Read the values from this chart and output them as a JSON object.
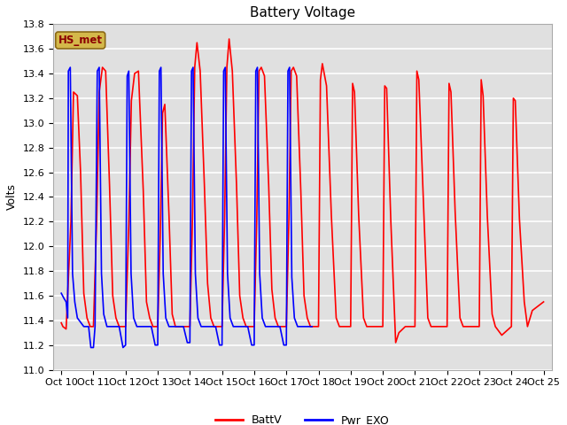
{
  "title": "Battery Voltage",
  "ylabel": "Volts",
  "ylim": [
    11.0,
    13.8
  ],
  "yticks": [
    11.0,
    11.2,
    11.4,
    11.6,
    11.8,
    12.0,
    12.2,
    12.4,
    12.6,
    12.8,
    13.0,
    13.2,
    13.4,
    13.6,
    13.8
  ],
  "xtick_labels": [
    "Oct 10",
    "Oct 11",
    "Oct 12",
    "Oct 13",
    "Oct 14",
    "Oct 15",
    "Oct 16",
    "Oct 17",
    "Oct 18",
    "Oct 19",
    "Oct 20",
    "Oct 21",
    "Oct 22",
    "Oct 23",
    "Oct 24",
    "Oct 25"
  ],
  "xtick_positions": [
    0,
    1,
    2,
    3,
    4,
    5,
    6,
    7,
    8,
    9,
    10,
    11,
    12,
    13,
    14,
    15
  ],
  "xlim": [
    -0.25,
    15.25
  ],
  "legend_labels": [
    "BattV",
    "Pwr_EXO"
  ],
  "legend_colors": [
    "red",
    "blue"
  ],
  "station_label": "HS_met",
  "plot_bg": "#e0e0e0",
  "fig_bg": "white",
  "grid_color": "white",
  "title_fontsize": 11,
  "axis_fontsize": 9,
  "tick_fontsize": 8,
  "line_width": 1.2,
  "battv_color": "red",
  "pwr_color": "blue",
  "battv": [
    [
      0.0,
      11.38
    ],
    [
      0.05,
      11.35
    ],
    [
      0.15,
      11.33
    ],
    [
      0.3,
      12.2
    ],
    [
      0.38,
      13.25
    ],
    [
      0.5,
      13.22
    ],
    [
      0.6,
      12.6
    ],
    [
      0.7,
      11.62
    ],
    [
      0.8,
      11.42
    ],
    [
      0.9,
      11.35
    ],
    [
      0.95,
      11.35
    ],
    [
      1.0,
      11.35
    ],
    [
      1.1,
      12.2
    ],
    [
      1.18,
      13.25
    ],
    [
      1.28,
      13.45
    ],
    [
      1.38,
      13.42
    ],
    [
      1.5,
      12.5
    ],
    [
      1.6,
      11.6
    ],
    [
      1.7,
      11.42
    ],
    [
      1.8,
      11.35
    ],
    [
      1.95,
      11.35
    ],
    [
      2.0,
      11.35
    ],
    [
      2.1,
      12.18
    ],
    [
      2.18,
      13.18
    ],
    [
      2.28,
      13.4
    ],
    [
      2.4,
      13.42
    ],
    [
      2.55,
      12.45
    ],
    [
      2.65,
      11.55
    ],
    [
      2.75,
      11.42
    ],
    [
      2.85,
      11.35
    ],
    [
      2.95,
      11.35
    ],
    [
      3.0,
      11.35
    ],
    [
      3.08,
      12.1
    ],
    [
      3.15,
      13.08
    ],
    [
      3.22,
      13.15
    ],
    [
      3.35,
      12.25
    ],
    [
      3.45,
      11.45
    ],
    [
      3.55,
      11.35
    ],
    [
      3.7,
      11.35
    ],
    [
      3.9,
      11.35
    ],
    [
      3.98,
      11.35
    ],
    [
      4.0,
      11.35
    ],
    [
      4.08,
      12.22
    ],
    [
      4.15,
      13.45
    ],
    [
      4.22,
      13.65
    ],
    [
      4.32,
      13.42
    ],
    [
      4.45,
      12.5
    ],
    [
      4.55,
      11.7
    ],
    [
      4.65,
      11.42
    ],
    [
      4.75,
      11.35
    ],
    [
      4.9,
      11.35
    ],
    [
      5.0,
      11.35
    ],
    [
      5.08,
      12.22
    ],
    [
      5.15,
      13.45
    ],
    [
      5.22,
      13.68
    ],
    [
      5.32,
      13.42
    ],
    [
      5.45,
      12.5
    ],
    [
      5.55,
      11.6
    ],
    [
      5.65,
      11.42
    ],
    [
      5.75,
      11.35
    ],
    [
      5.9,
      11.35
    ],
    [
      6.0,
      11.35
    ],
    [
      6.08,
      12.22
    ],
    [
      6.15,
      13.42
    ],
    [
      6.22,
      13.45
    ],
    [
      6.32,
      13.38
    ],
    [
      6.45,
      12.5
    ],
    [
      6.55,
      11.65
    ],
    [
      6.65,
      11.42
    ],
    [
      6.75,
      11.35
    ],
    [
      6.9,
      11.35
    ],
    [
      7.0,
      11.35
    ],
    [
      7.08,
      12.22
    ],
    [
      7.15,
      13.42
    ],
    [
      7.22,
      13.45
    ],
    [
      7.32,
      13.38
    ],
    [
      7.45,
      12.45
    ],
    [
      7.55,
      11.6
    ],
    [
      7.65,
      11.42
    ],
    [
      7.75,
      11.35
    ],
    [
      7.9,
      11.35
    ],
    [
      8.0,
      11.35
    ],
    [
      8.06,
      13.35
    ],
    [
      8.12,
      13.48
    ],
    [
      8.25,
      13.3
    ],
    [
      8.4,
      12.25
    ],
    [
      8.55,
      11.42
    ],
    [
      8.65,
      11.35
    ],
    [
      8.8,
      11.35
    ],
    [
      9.0,
      11.35
    ],
    [
      9.06,
      13.32
    ],
    [
      9.12,
      13.25
    ],
    [
      9.25,
      12.25
    ],
    [
      9.4,
      11.42
    ],
    [
      9.5,
      11.35
    ],
    [
      9.7,
      11.35
    ],
    [
      10.0,
      11.35
    ],
    [
      10.06,
      13.3
    ],
    [
      10.12,
      13.28
    ],
    [
      10.25,
      12.2
    ],
    [
      10.4,
      11.22
    ],
    [
      10.5,
      11.3
    ],
    [
      10.7,
      11.35
    ],
    [
      11.0,
      11.35
    ],
    [
      11.06,
      13.42
    ],
    [
      11.12,
      13.35
    ],
    [
      11.25,
      12.45
    ],
    [
      11.4,
      11.42
    ],
    [
      11.5,
      11.35
    ],
    [
      11.7,
      11.35
    ],
    [
      12.0,
      11.35
    ],
    [
      12.06,
      13.32
    ],
    [
      12.12,
      13.25
    ],
    [
      12.25,
      12.28
    ],
    [
      12.4,
      11.42
    ],
    [
      12.5,
      11.35
    ],
    [
      12.7,
      11.35
    ],
    [
      13.0,
      11.35
    ],
    [
      13.06,
      13.35
    ],
    [
      13.12,
      13.22
    ],
    [
      13.25,
      12.25
    ],
    [
      13.4,
      11.45
    ],
    [
      13.5,
      11.35
    ],
    [
      13.7,
      11.28
    ],
    [
      14.0,
      11.35
    ],
    [
      14.06,
      13.2
    ],
    [
      14.12,
      13.18
    ],
    [
      14.25,
      12.22
    ],
    [
      14.4,
      11.55
    ],
    [
      14.5,
      11.35
    ],
    [
      14.65,
      11.48
    ],
    [
      15.0,
      11.55
    ]
  ],
  "pwr_exo": [
    [
      0.0,
      11.62
    ],
    [
      0.08,
      11.58
    ],
    [
      0.15,
      11.55
    ],
    [
      0.2,
      11.42
    ],
    [
      0.22,
      13.42
    ],
    [
      0.28,
      13.45
    ],
    [
      0.35,
      11.78
    ],
    [
      0.42,
      11.55
    ],
    [
      0.5,
      11.42
    ],
    [
      0.7,
      11.35
    ],
    [
      0.85,
      11.35
    ],
    [
      0.92,
      11.18
    ],
    [
      1.0,
      11.18
    ],
    [
      1.05,
      11.35
    ],
    [
      1.12,
      13.42
    ],
    [
      1.18,
      13.45
    ],
    [
      1.25,
      11.78
    ],
    [
      1.32,
      11.45
    ],
    [
      1.42,
      11.35
    ],
    [
      1.6,
      11.35
    ],
    [
      1.8,
      11.35
    ],
    [
      1.92,
      11.18
    ],
    [
      2.0,
      11.2
    ],
    [
      2.05,
      13.38
    ],
    [
      2.1,
      13.42
    ],
    [
      2.17,
      11.78
    ],
    [
      2.25,
      11.42
    ],
    [
      2.35,
      11.35
    ],
    [
      2.6,
      11.35
    ],
    [
      2.8,
      11.35
    ],
    [
      2.92,
      11.2
    ],
    [
      3.0,
      11.2
    ],
    [
      3.05,
      13.42
    ],
    [
      3.1,
      13.45
    ],
    [
      3.17,
      11.78
    ],
    [
      3.25,
      11.42
    ],
    [
      3.35,
      11.35
    ],
    [
      3.6,
      11.35
    ],
    [
      3.8,
      11.35
    ],
    [
      3.92,
      11.22
    ],
    [
      4.0,
      11.22
    ],
    [
      4.05,
      13.42
    ],
    [
      4.1,
      13.45
    ],
    [
      4.17,
      11.78
    ],
    [
      4.25,
      11.42
    ],
    [
      4.35,
      11.35
    ],
    [
      4.6,
      11.35
    ],
    [
      4.8,
      11.35
    ],
    [
      4.92,
      11.2
    ],
    [
      5.0,
      11.2
    ],
    [
      5.05,
      13.42
    ],
    [
      5.1,
      13.45
    ],
    [
      5.17,
      11.78
    ],
    [
      5.25,
      11.42
    ],
    [
      5.35,
      11.35
    ],
    [
      5.6,
      11.35
    ],
    [
      5.8,
      11.35
    ],
    [
      5.92,
      11.2
    ],
    [
      6.0,
      11.2
    ],
    [
      6.05,
      13.42
    ],
    [
      6.1,
      13.45
    ],
    [
      6.17,
      11.78
    ],
    [
      6.25,
      11.42
    ],
    [
      6.35,
      11.35
    ],
    [
      6.6,
      11.35
    ],
    [
      6.8,
      11.35
    ],
    [
      6.92,
      11.2
    ],
    [
      7.0,
      11.2
    ],
    [
      7.05,
      13.42
    ],
    [
      7.1,
      13.45
    ],
    [
      7.17,
      11.75
    ],
    [
      7.25,
      11.42
    ],
    [
      7.35,
      11.35
    ],
    [
      7.6,
      11.35
    ],
    [
      7.8,
      11.35
    ]
  ]
}
